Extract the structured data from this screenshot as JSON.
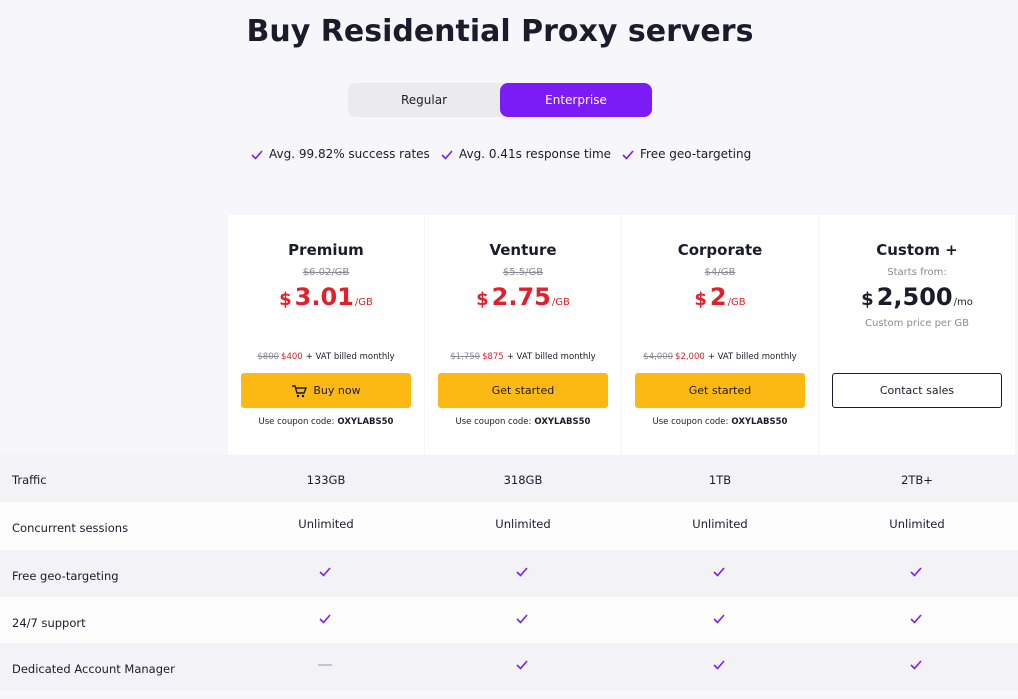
{
  "title": "Buy Residential Proxy servers",
  "tabs": [
    {
      "label": "Regular",
      "active": false
    },
    {
      "label": "Enterprise",
      "active": true
    }
  ],
  "features": [
    "Avg. 99.82% success rates",
    "Avg. 0.41s response time",
    "Free geo-targeting"
  ],
  "plans": [
    {
      "name": "Premium",
      "old_price": "$6.02/GB",
      "currency": "$",
      "price": "3.01",
      "unit": "/GB",
      "billing_old": "$800",
      "billing_new": "$400",
      "billing_note": "+ VAT billed monthly",
      "button": "Buy now",
      "coupon_text": "Use coupon code:",
      "coupon": "OXYLABS50"
    },
    {
      "name": "Venture",
      "old_price": "$5.5/GB",
      "currency": "$",
      "price": "2.75",
      "unit": "/GB",
      "billing_old": "$1,750",
      "billing_new": "$875",
      "billing_note": "+ VAT billed monthly",
      "button": "Get started",
      "coupon_text": "Use coupon code:",
      "coupon": "OXYLABS50"
    },
    {
      "name": "Corporate",
      "old_price": "$4/GB",
      "currency": "$",
      "price": "2",
      "unit": "/GB",
      "billing_old": "$4,000",
      "billing_new": "$2,000",
      "billing_note": "+ VAT billed monthly",
      "button": "Get started",
      "coupon_text": "Use coupon code:",
      "coupon": "OXYLABS50"
    },
    {
      "name": "Custom +",
      "starts": "Starts from:",
      "currency": "$",
      "price": "2,500",
      "unit": "/mo",
      "note": "Custom price per GB",
      "button": "Contact sales"
    }
  ],
  "table": {
    "rows": [
      {
        "label": "Traffic",
        "cells": [
          "133GB",
          "318GB",
          "1TB",
          "2TB+"
        ]
      },
      {
        "label": "Concurrent sessions",
        "cells": [
          "Unlimited",
          "Unlimited",
          "Unlimited",
          "Unlimited"
        ]
      },
      {
        "label": "Free geo-targeting",
        "cells": [
          true,
          true,
          true,
          true
        ]
      },
      {
        "label": "24/7 support",
        "cells": [
          true,
          true,
          true,
          true
        ]
      },
      {
        "label": "Dedicated Account Manager",
        "cells": [
          false,
          true,
          true,
          true
        ]
      }
    ]
  }
}
